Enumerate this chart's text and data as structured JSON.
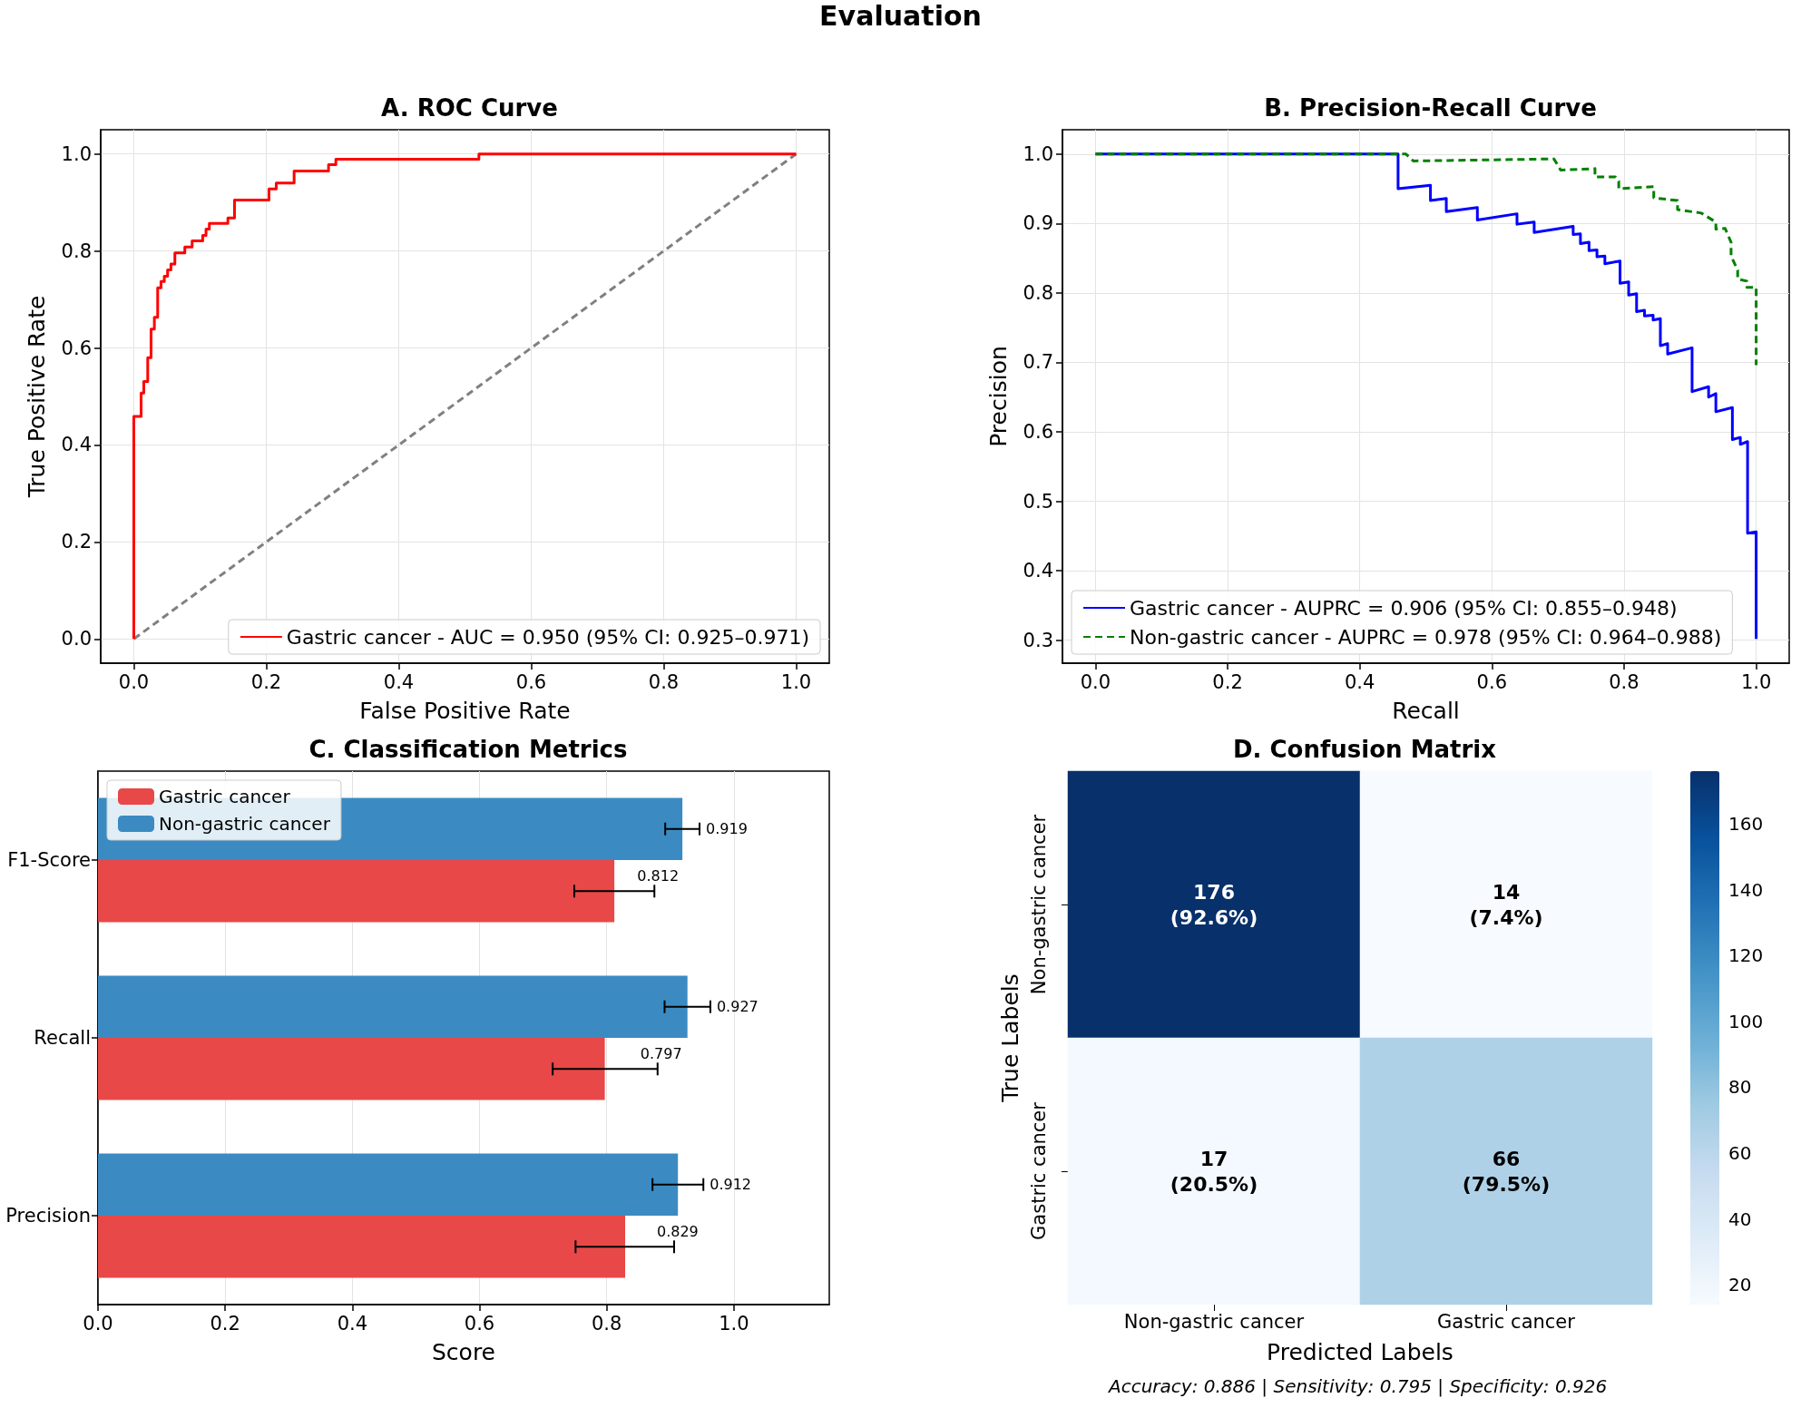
{
  "chart_data": [
    {
      "type": "other",
      "title": "Evaluation"
    },
    {
      "type": "line",
      "title": "A. ROC Curve",
      "xlabel": "False Positive Rate",
      "ylabel": "True Positive Rate",
      "marker": "none",
      "grid": true,
      "legend": "bottom right",
      "xlim": [
        -0.05,
        1.05
      ],
      "ylim": [
        -0.05,
        1.05
      ],
      "xticks": [
        {
          "value": 0,
          "label": "0.0"
        },
        {
          "value": 0.2,
          "label": "0.2"
        },
        {
          "value": 0.4,
          "label": "0.4"
        },
        {
          "value": 0.6,
          "label": "0.6"
        },
        {
          "value": 0.8,
          "label": "0.8"
        },
        {
          "value": 1,
          "label": "1.0"
        }
      ],
      "yticks": [
        {
          "value": 0,
          "label": "0.0"
        },
        {
          "value": 0.2,
          "label": "0.2"
        },
        {
          "value": 0.4,
          "label": "0.4"
        },
        {
          "value": 0.6,
          "label": "0.6"
        },
        {
          "value": 0.8,
          "label": "0.8"
        },
        {
          "value": 1,
          "label": "1.0"
        }
      ],
      "series": [
        {
          "name": "Gastric cancer - AUC = 0.950 (95% CI: 0.925–0.971)",
          "color": "#ff0000",
          "line_style": "solid",
          "x": [
            0,
            0,
            0.011,
            0.011,
            0.015,
            0.015,
            0.021,
            0.021,
            0.026,
            0.026,
            0.031,
            0.031,
            0.036,
            0.036,
            0.041,
            0.041,
            0.046,
            0.046,
            0.051,
            0.051,
            0.056,
            0.056,
            0.062,
            0.062,
            0.077,
            0.077,
            0.088,
            0.088,
            0.104,
            0.104,
            0.109,
            0.109,
            0.114,
            0.114,
            0.142,
            0.142,
            0.152,
            0.152,
            0.204,
            0.204,
            0.215,
            0.215,
            0.242,
            0.242,
            0.294,
            0.294,
            0.305,
            0.305,
            0.521,
            0.521,
            1.0
          ],
          "values": [
            0,
            0.459,
            0.459,
            0.507,
            0.507,
            0.531,
            0.531,
            0.58,
            0.58,
            0.639,
            0.639,
            0.663,
            0.663,
            0.724,
            0.724,
            0.737,
            0.737,
            0.748,
            0.748,
            0.761,
            0.761,
            0.773,
            0.773,
            0.796,
            0.796,
            0.808,
            0.808,
            0.821,
            0.821,
            0.832,
            0.832,
            0.845,
            0.845,
            0.857,
            0.857,
            0.868,
            0.868,
            0.905,
            0.905,
            0.928,
            0.928,
            0.94,
            0.94,
            0.965,
            0.965,
            0.978,
            0.978,
            0.989,
            0.989,
            1.0,
            1.0
          ]
        },
        {
          "color": "#808080",
          "line_style": "dashed",
          "x": [
            0,
            1
          ],
          "values": [
            0,
            1
          ]
        }
      ]
    },
    {
      "type": "line",
      "title": "B. Precision-Recall Curve",
      "xlabel": "Recall",
      "ylabel": "Precision",
      "marker": "none",
      "grid": true,
      "legend": "bottom left",
      "xlim": [
        -0.05,
        1.05
      ],
      "ylim": [
        0.267,
        1.035
      ],
      "xticks": [
        {
          "value": 0,
          "label": "0.0"
        },
        {
          "value": 0.2,
          "label": "0.2"
        },
        {
          "value": 0.4,
          "label": "0.4"
        },
        {
          "value": 0.6,
          "label": "0.6"
        },
        {
          "value": 0.8,
          "label": "0.8"
        },
        {
          "value": 1,
          "label": "1.0"
        }
      ],
      "yticks": [
        {
          "value": 0.3,
          "label": "0.3"
        },
        {
          "value": 0.4,
          "label": "0.4"
        },
        {
          "value": 0.5,
          "label": "0.5"
        },
        {
          "value": 0.6,
          "label": "0.6"
        },
        {
          "value": 0.7,
          "label": "0.7"
        },
        {
          "value": 0.8,
          "label": "0.8"
        },
        {
          "value": 0.9,
          "label": "0.9"
        },
        {
          "value": 1,
          "label": "1.0"
        }
      ],
      "series": [
        {
          "name": "Gastric cancer - AUPRC = 0.906 (95% CI: 0.855–0.948)",
          "color": "#0000ff",
          "line_style": "solid",
          "x": [
            0,
            0.458,
            0.458,
            0.507,
            0.507,
            0.531,
            0.531,
            0.578,
            0.578,
            0.638,
            0.638,
            0.664,
            0.664,
            0.723,
            0.723,
            0.734,
            0.734,
            0.747,
            0.747,
            0.759,
            0.759,
            0.771,
            0.771,
            0.794,
            0.794,
            0.807,
            0.807,
            0.819,
            0.819,
            0.831,
            0.831,
            0.844,
            0.844,
            0.855,
            0.855,
            0.866,
            0.866,
            0.903,
            0.903,
            0.928,
            0.928,
            0.939,
            0.939,
            0.964,
            0.964,
            0.976,
            0.976,
            0.987,
            0.987,
            1.0,
            1.0
          ],
          "values": [
            1.0,
            1.0,
            0.95,
            0.955,
            0.933,
            0.936,
            0.917,
            0.923,
            0.905,
            0.914,
            0.899,
            0.902,
            0.887,
            0.896,
            0.884,
            0.885,
            0.871,
            0.873,
            0.861,
            0.862,
            0.852,
            0.853,
            0.842,
            0.846,
            0.814,
            0.816,
            0.797,
            0.799,
            0.773,
            0.775,
            0.767,
            0.768,
            0.761,
            0.763,
            0.724,
            0.727,
            0.712,
            0.721,
            0.658,
            0.665,
            0.65,
            0.655,
            0.629,
            0.635,
            0.589,
            0.592,
            0.582,
            0.586,
            0.454,
            0.456,
            0.302
          ]
        },
        {
          "name": "Non-gastric cancer - AUPRC = 0.978 (95% CI: 0.964–0.988)",
          "color": "#008000",
          "line_style": "dashed",
          "x": [
            0,
            0.47,
            0.481,
            0.694,
            0.704,
            0.756,
            0.756,
            0.787,
            0.792,
            0.792,
            0.845,
            0.845,
            0.881,
            0.881,
            0.917,
            0.939,
            0.939,
            0.953,
            0.962,
            0.962,
            0.972,
            0.972,
            0.986,
            0.986,
            1.0,
            1.0
          ],
          "values": [
            1.0,
            1.0,
            0.99,
            0.993,
            0.977,
            0.979,
            0.967,
            0.967,
            0.961,
            0.95,
            0.953,
            0.937,
            0.933,
            0.92,
            0.915,
            0.902,
            0.892,
            0.893,
            0.873,
            0.853,
            0.833,
            0.82,
            0.817,
            0.808,
            0.808,
            0.696
          ]
        }
      ]
    },
    {
      "type": "bar",
      "orientation": "horizontal",
      "title": "C. Classification Metrics",
      "xlabel": "Score",
      "grid": "x",
      "legend": "top left",
      "data_labels": true,
      "categories": [
        "F1-Score",
        "Recall",
        "Precision"
      ],
      "xlim": [
        0,
        1.15
      ],
      "xticks": [
        {
          "value": 0,
          "label": "0.0"
        },
        {
          "value": 0.2,
          "label": "0.2"
        },
        {
          "value": 0.4,
          "label": "0.4"
        },
        {
          "value": 0.6,
          "label": "0.6"
        },
        {
          "value": 0.8,
          "label": "0.8"
        },
        {
          "value": 1,
          "label": "1.0"
        }
      ],
      "series": [
        {
          "name": "Gastric cancer",
          "color": "#e84848",
          "values": [
            0.812,
            0.797,
            0.829
          ],
          "errors": [
            [
              0.749,
              0.875
            ],
            [
              0.715,
              0.88
            ],
            [
              0.751,
              0.906
            ]
          ]
        },
        {
          "name": "Non-gastric cancer",
          "color": "#3b8bc2",
          "values": [
            0.919,
            0.927,
            0.912
          ],
          "errors": [
            [
              0.892,
              0.946
            ],
            [
              0.891,
              0.963
            ],
            [
              0.872,
              0.952
            ]
          ]
        }
      ]
    },
    {
      "type": "heatmap",
      "title": "D. Confusion Matrix",
      "xlabel": "Predicted Labels",
      "ylabel": "True Labels",
      "categories": [
        "Non-gastric cancer",
        "Gastric cancer"
      ],
      "y_categories": [
        "Non-gastric cancer",
        "Gastric cancer"
      ],
      "cells": [
        [
          176,
          14
        ],
        [
          17,
          66
        ]
      ],
      "cell_labels": [
        [
          "176\n(92.6%)",
          "14\n(7.4%)"
        ],
        [
          "17\n(20.5%)",
          "66\n(79.5%)"
        ]
      ],
      "clim": [
        14,
        176
      ],
      "cticks": [
        20,
        40,
        60,
        80,
        100,
        120,
        140,
        160
      ],
      "annotations": [
        "Accuracy: 0.886 | Sensitivity: 0.795 | Specificity: 0.926"
      ]
    }
  ]
}
